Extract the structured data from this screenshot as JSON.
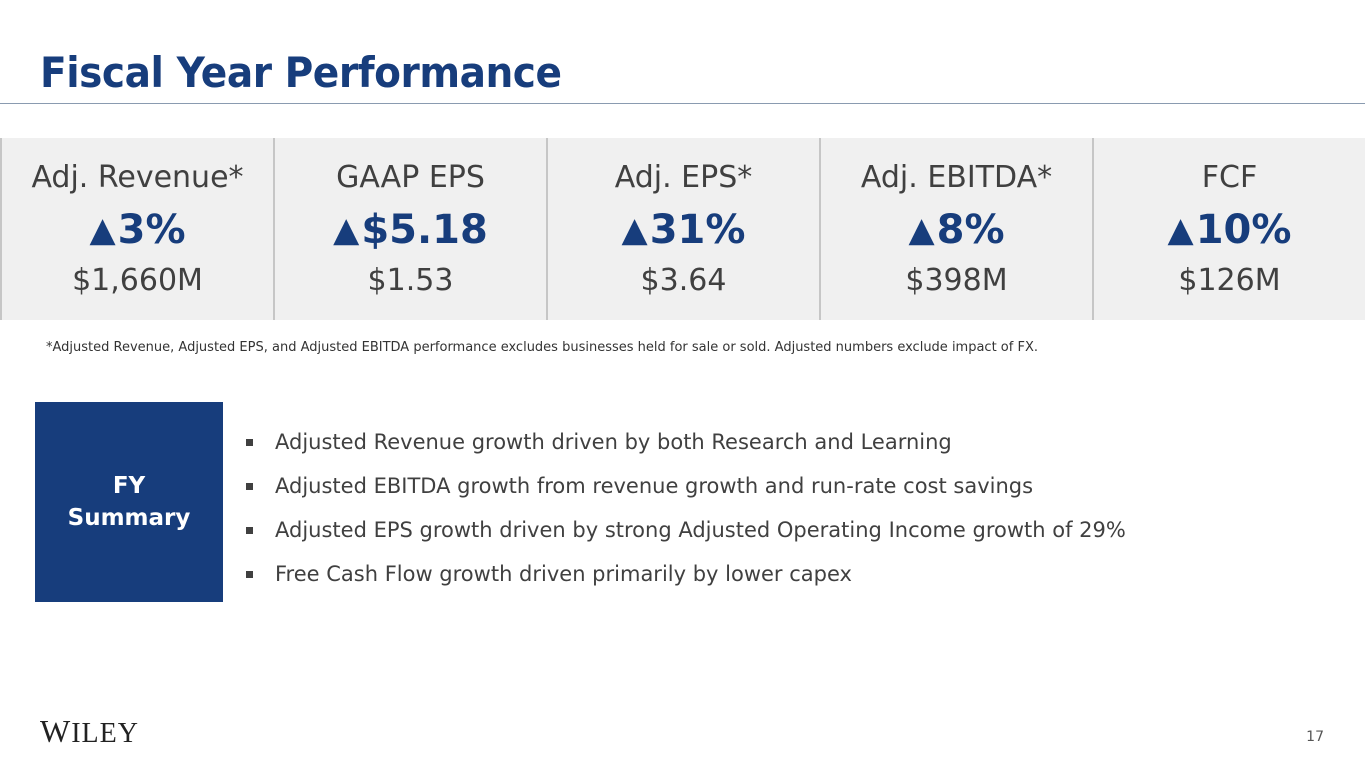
{
  "slide": {
    "title": "Fiscal Year Performance",
    "page_number": "17"
  },
  "metrics": [
    {
      "label": "Adj. Revenue*",
      "arrow": "▲",
      "change": "3%",
      "value": "$1,660M"
    },
    {
      "label": "GAAP EPS",
      "arrow": "▲",
      "change": "$5.18",
      "value": "$1.53"
    },
    {
      "label": "Adj. EPS*",
      "arrow": "▲",
      "change": "31%",
      "value": "$3.64"
    },
    {
      "label": "Adj. EBITDA*",
      "arrow": "▲",
      "change": "8%",
      "value": "$398M"
    },
    {
      "label": "FCF",
      "arrow": "▲",
      "change": "10%",
      "value": "$126M"
    }
  ],
  "footnote": "*Adjusted Revenue, Adjusted EPS, and Adjusted EBITDA performance excludes businesses held for sale or sold.  Adjusted numbers exclude impact of FX.",
  "summary": {
    "box_line1": "FY",
    "box_line2": "Summary",
    "bullets": [
      "Adjusted Revenue growth driven by both Research and Learning",
      "Adjusted EBITDA growth from revenue growth and run-rate cost savings",
      "Adjusted EPS growth driven by strong Adjusted Operating Income growth of 29%",
      "Free Cash Flow growth driven primarily by lower capex"
    ]
  },
  "logo": {
    "first": "W",
    "rest": "ILEY"
  },
  "colors": {
    "brand": "#173d7c",
    "panel": "#f0f0f0",
    "divider": "#c6c6c6"
  }
}
